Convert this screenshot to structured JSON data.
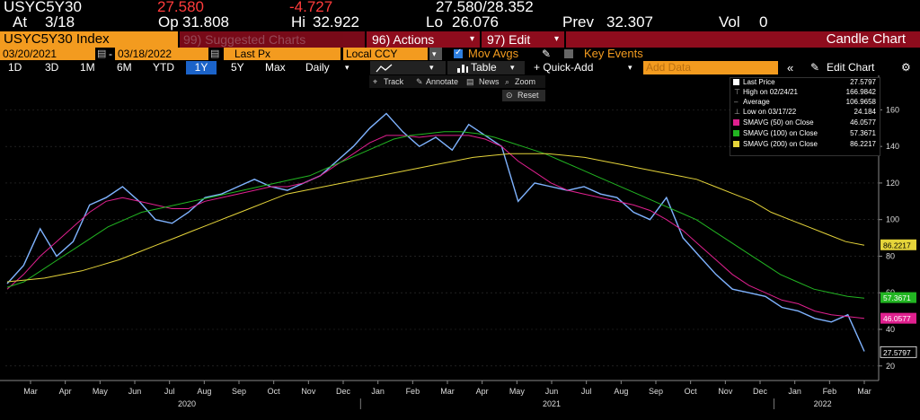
{
  "quote": {
    "ticker": "USYC5Y30",
    "last": "27.580",
    "change": "-4.727",
    "bidask": "27.580/28.352",
    "at_label": "At",
    "at_val": "3/18",
    "op_label": "Op",
    "op_val": "31.808",
    "hi_label": "Hi",
    "hi_val": "32.922",
    "lo_label": "Lo",
    "lo_val": "26.076",
    "prev_label": "Prev",
    "prev_val": "32.307",
    "vol_label": "Vol",
    "vol_val": "0"
  },
  "menu": {
    "security": "USYC5Y30 Index",
    "suggested": "99) Suggested Charts",
    "actions": "96) Actions",
    "edit": "97) Edit",
    "title": "Candle Chart"
  },
  "controls": {
    "start_date": "03/20/2021",
    "end_date": "03/18/2022",
    "field": "Last Px",
    "currency": "Local CCY",
    "mov_avgs": "Mov Avgs",
    "key_events": "Key Events"
  },
  "toolbar": {
    "ranges": [
      "1D",
      "3D",
      "1M",
      "6M",
      "YTD",
      "1Y",
      "5Y",
      "Max"
    ],
    "active_range": "1Y",
    "period": "Daily",
    "table": "Table",
    "quick_add": "+ Quick-Add",
    "add_data_placeholder": "Add Data",
    "edit_chart": "Edit Chart"
  },
  "chart_tools": {
    "track": "Track",
    "annotate": "Annotate",
    "news": "News",
    "zoom": "Zoom",
    "reset": "Reset"
  },
  "legend": {
    "items": [
      {
        "label": "Last Price",
        "value": "27.5797"
      },
      {
        "label": "High on 02/24/21",
        "value": "166.9842"
      },
      {
        "label": "Average",
        "value": "106.9658"
      },
      {
        "label": "Low on 03/17/22",
        "value": "24.184"
      },
      {
        "label": "SMAVG (50)  on Close",
        "value": "46.0577"
      },
      {
        "label": "SMAVG (100)  on Close",
        "value": "57.3671"
      },
      {
        "label": "SMAVG (200)  on Close",
        "value": "86.2217"
      }
    ]
  },
  "colors": {
    "price": "#7fb3ff",
    "sma50": "#e0208f",
    "sma100": "#22b522",
    "sma200": "#e5d43a",
    "accent": "#f39b1f",
    "down": "#ff3b3b"
  },
  "chart_data": {
    "type": "line",
    "x_ticks": [
      "Mar",
      "Apr",
      "May",
      "Jun",
      "Jul",
      "Aug",
      "Sep",
      "Oct",
      "Nov",
      "Dec",
      "Jan",
      "Feb",
      "Mar",
      "Apr",
      "May",
      "Jun",
      "Jul",
      "Aug",
      "Sep",
      "Oct",
      "Nov",
      "Dec",
      "Jan",
      "Feb",
      "Mar"
    ],
    "years": [
      "2020",
      "2021",
      "2022"
    ],
    "y_ticks": [
      20,
      40,
      60,
      80,
      100,
      120,
      140,
      160
    ],
    "ylim": [
      14,
      170
    ],
    "price_badge": "27.5797",
    "sma50_badge": "46.0577",
    "sma100_badge": "57.3671",
    "sma200_badge": "86.2217",
    "series": [
      {
        "key": "price",
        "values": [
          65,
          75,
          95,
          80,
          88,
          108,
          112,
          118,
          110,
          100,
          98,
          104,
          112,
          114,
          118,
          122,
          118,
          116,
          120,
          124,
          132,
          140,
          150,
          158,
          148,
          140,
          145,
          138,
          152,
          146,
          140,
          110,
          120,
          118,
          116,
          118,
          114,
          112,
          104,
          100,
          112,
          90,
          80,
          70,
          62,
          60,
          58,
          52,
          50,
          46,
          44,
          48,
          28
        ]
      },
      {
        "key": "sma50",
        "values": [
          62,
          70,
          80,
          88,
          96,
          104,
          110,
          112,
          110,
          108,
          106,
          106,
          110,
          112,
          114,
          116,
          118,
          118,
          120,
          124,
          130,
          136,
          142,
          146,
          146,
          145,
          146,
          146,
          146,
          144,
          140,
          132,
          126,
          120,
          116,
          114,
          112,
          110,
          108,
          105,
          100,
          94,
          86,
          78,
          70,
          64,
          60,
          56,
          54,
          50,
          48,
          47,
          46
        ]
      },
      {
        "key": "sma100",
        "values": [
          63,
          66,
          72,
          78,
          84,
          90,
          96,
          100,
          104,
          106,
          108,
          110,
          112,
          114,
          116,
          118,
          120,
          122,
          124,
          128,
          132,
          136,
          140,
          144,
          146,
          147,
          148,
          148,
          147,
          145,
          142,
          139,
          136,
          132,
          128,
          124,
          120,
          116,
          112,
          108,
          104,
          100,
          94,
          88,
          82,
          76,
          70,
          66,
          62,
          60,
          58,
          57
        ]
      },
      {
        "key": "sma200",
        "values": [
          66,
          67,
          68,
          70,
          72,
          75,
          78,
          82,
          86,
          90,
          94,
          98,
          102,
          106,
          110,
          114,
          116,
          118,
          120,
          122,
          124,
          126,
          128,
          130,
          132,
          134,
          135,
          136,
          136,
          136,
          135,
          134,
          132,
          130,
          128,
          126,
          124,
          122,
          118,
          114,
          110,
          104,
          100,
          96,
          92,
          88,
          86
        ]
      }
    ]
  }
}
